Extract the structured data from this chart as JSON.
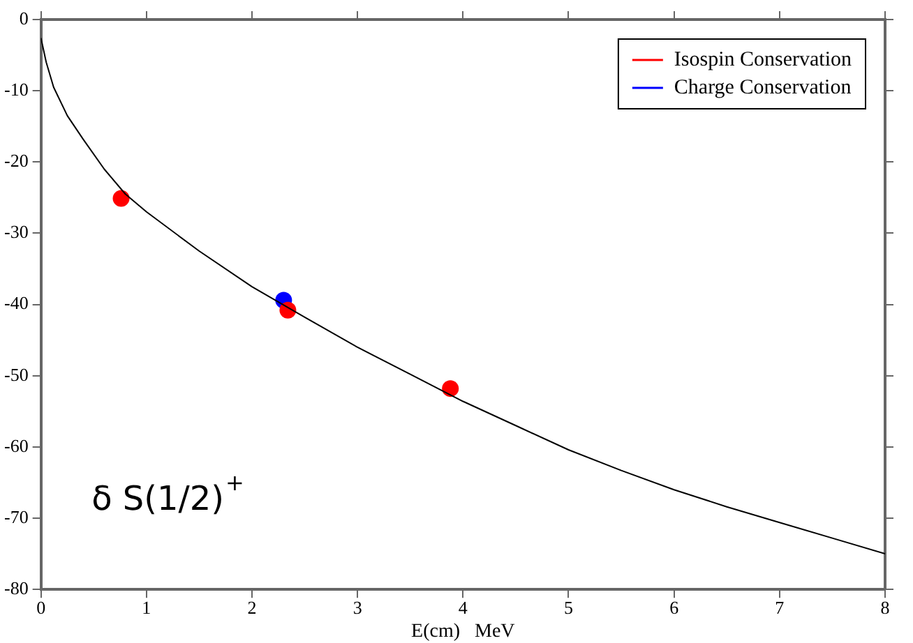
{
  "chart_data": {
    "type": "scatter",
    "xlabel": "E(cm)   MeV",
    "xlim": [
      0,
      8
    ],
    "xticks": [
      0,
      1,
      2,
      3,
      4,
      5,
      6,
      7,
      8
    ],
    "ylim": [
      -80,
      0
    ],
    "yticks": [
      -80,
      -70,
      -60,
      -50,
      -40,
      -30,
      -20,
      -10,
      0
    ],
    "grid": false,
    "legend": "top right",
    "marker": "circle",
    "annotations": [
      "δ S(1/2)$^{+}$"
    ],
    "series": [
      {
        "type": "line",
        "color": "#000000",
        "marker": "none",
        "x": [
          0,
          0.05,
          0.12,
          0.25,
          0.4,
          0.6,
          0.8,
          1,
          1.5,
          2,
          2.5,
          3,
          3.5,
          4,
          4.5,
          5,
          5.5,
          6,
          6.5,
          7,
          7.5,
          8
        ],
        "values": [
          -2.6,
          -6,
          -9.5,
          -13.5,
          -16.8,
          -21,
          -24.5,
          -27,
          -32.5,
          -37.5,
          -41.8,
          -46,
          -49.8,
          -53.6,
          -57,
          -60.4,
          -63.3,
          -66,
          -68.4,
          -70.6,
          -72.8,
          -75
        ]
      },
      {
        "name": "Isospin Conservation",
        "color": "#ff0000",
        "x": [
          0.76,
          2.34,
          3.88
        ],
        "values": [
          -25.1,
          -40.8,
          -51.8
        ]
      },
      {
        "name": "Charge Conservation",
        "color": "#0000ff",
        "x": [
          2.3
        ],
        "values": [
          -39.4
        ]
      }
    ]
  }
}
